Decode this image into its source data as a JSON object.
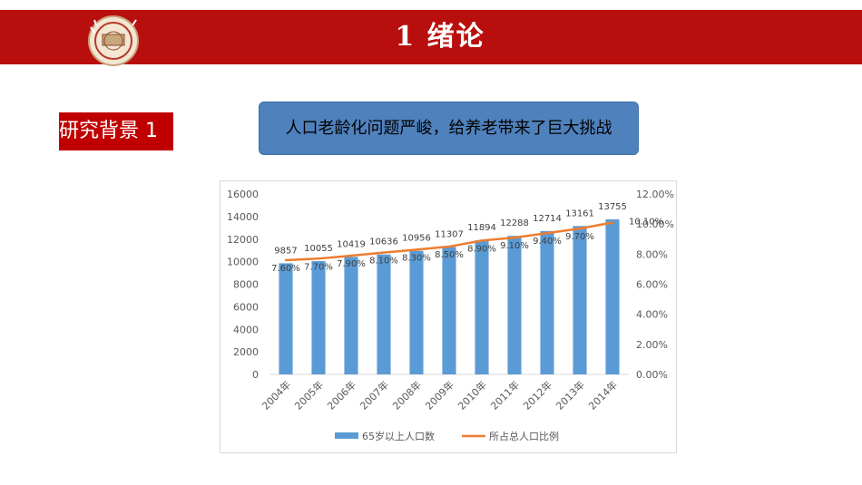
{
  "header": {
    "title": "1 绪论",
    "logo_icon": "university-seal-icon",
    "band_color": "#b80f0e"
  },
  "section_label": "研究背景 1",
  "callout": {
    "text": "人口老龄化问题严峻，给养老带来了巨大挑战",
    "color": "#4f81bd"
  },
  "chart_data": {
    "type": "bar",
    "title": "",
    "categories": [
      "2004年",
      "2005年",
      "2006年",
      "2007年",
      "2008年",
      "2009年",
      "2010年",
      "2011年",
      "2012年",
      "2013年",
      "2014年"
    ],
    "series": [
      {
        "name": "65岁以上人口数",
        "type": "bar",
        "axis": "left",
        "color": "#5b9bd5",
        "values": [
          9857,
          10055,
          10419,
          10636,
          10956,
          11307,
          11894,
          12288,
          12714,
          13161,
          13755
        ],
        "labels": [
          "9857",
          "10055",
          "10419",
          "10636",
          "10956",
          "11307",
          "11894",
          "12288",
          "12714",
          "13161",
          "13755"
        ]
      },
      {
        "name": "所占总人口比例",
        "type": "line",
        "axis": "right",
        "color": "#ed7d31",
        "values": [
          7.6,
          7.7,
          7.9,
          8.1,
          8.3,
          8.5,
          8.9,
          9.1,
          9.4,
          9.7,
          10.1
        ],
        "labels": [
          "7.60%",
          "7.70%",
          "7.90%",
          "8.10%",
          "8.30%",
          "8.50%",
          "8.90%",
          "9.10%",
          "9.40%",
          "9.70%",
          "10.10%"
        ]
      }
    ],
    "y_left": {
      "min": 0,
      "max": 16000,
      "ticks": [
        "0",
        "2000",
        "4000",
        "6000",
        "8000",
        "10000",
        "12000",
        "14000",
        "16000"
      ]
    },
    "y_right": {
      "min": 0,
      "max": 12,
      "ticks": [
        "0.00%",
        "2.00%",
        "4.00%",
        "6.00%",
        "8.00%",
        "10.00%",
        "12.00%"
      ]
    },
    "grid": false,
    "legend_position": "bottom"
  }
}
